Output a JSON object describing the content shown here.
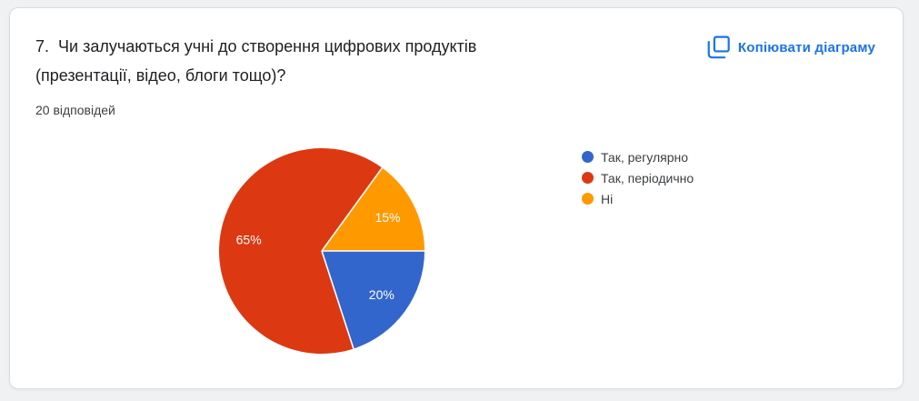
{
  "card": {
    "question_title": "7.  Чи залучаються учні до створення цифрових продуктів\n(презентації, відео, блоги тощо)?",
    "responses_label": "20 відповідей",
    "copy_button_label": "Копіювати діаграму",
    "accent_color": "#1a73e8"
  },
  "chart_data": {
    "type": "pie",
    "title": "7. Чи залучаються учні до створення цифрових продуктів (презентації, відео, блоги тощо)?",
    "subtitle": "20 відповідей",
    "responses_total": 20,
    "legend_position": "right",
    "start_angle_deg": 0,
    "direction": "clockwise",
    "slice_label_format": "percent",
    "slice_label_color": "#ffffff",
    "separator_color": "#ffffff",
    "slices": [
      {
        "label": "Так, регулярно",
        "pct": 20,
        "color": "#3366cc"
      },
      {
        "label": "Так, періодично",
        "pct": 65,
        "color": "#dc3912"
      },
      {
        "label": "Ні",
        "pct": 15,
        "color": "#ff9900"
      }
    ]
  }
}
